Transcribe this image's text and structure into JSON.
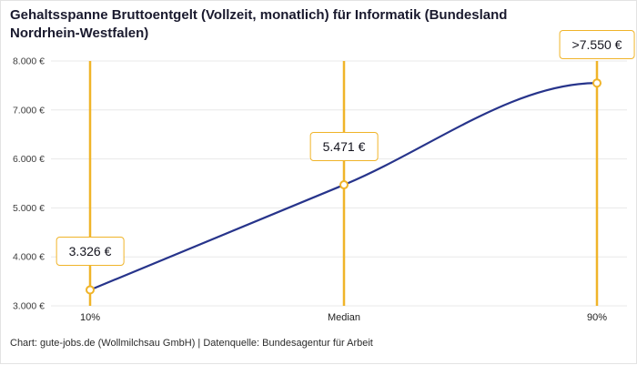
{
  "title": "Gehaltsspanne Bruttoentgelt (Vollzeit, monatlich) für Informatik (Bundesland Nordrhein-Westfalen)",
  "footer": "Chart: gute-jobs.de (Wollmilchsau GmbH) | Datenquelle: Bundesagentur für Arbeit",
  "colors": {
    "accent": "#f0b429",
    "line": "#27348b",
    "grid": "#e8e8e8",
    "tick_text": "#3c3c3c"
  },
  "chart_data": {
    "type": "line",
    "title": "Gehaltsspanne Bruttoentgelt (Vollzeit, monatlich) für Informatik (Bundesland Nordrhein-Westfalen)",
    "categories": [
      "10%",
      "Median",
      "90%"
    ],
    "values": [
      3326,
      5471,
      7550
    ],
    "point_labels": [
      "3.326 €",
      "5.471 €",
      ">7.550 €"
    ],
    "ylim": [
      3000,
      8000
    ],
    "ytick_values": [
      3000,
      4000,
      5000,
      6000,
      7000,
      8000
    ],
    "ytick_labels": [
      "3.000 €",
      "4.000 €",
      "5.000 €",
      "6.000 €",
      "7.000 €",
      "8.000 €"
    ],
    "xlabel": "",
    "ylabel": "",
    "grid": true,
    "legend": false,
    "source": "Chart: gute-jobs.de (Wollmilchsau GmbH) | Datenquelle: Bundesagentur für Arbeit"
  }
}
